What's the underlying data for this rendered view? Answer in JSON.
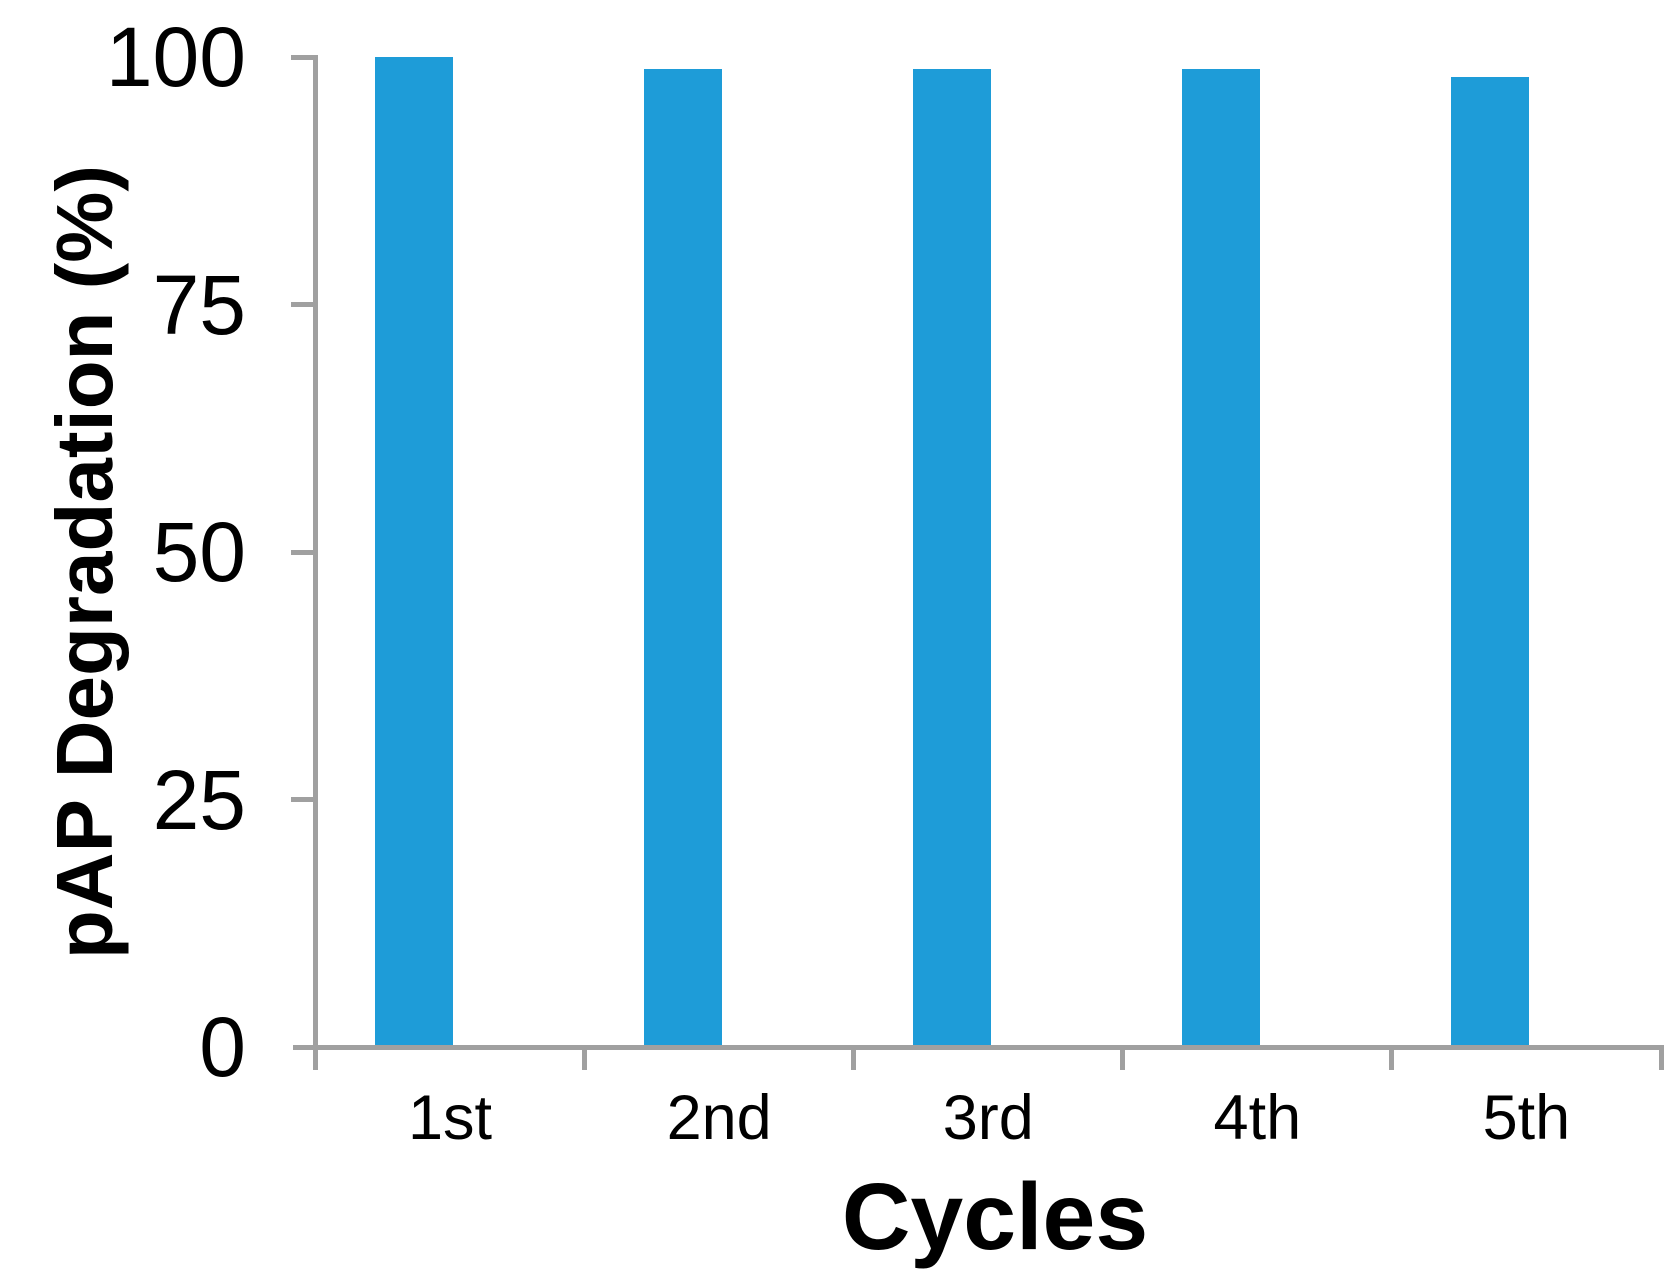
{
  "chart_data": {
    "type": "bar",
    "title": "",
    "categories": [
      "1st",
      "2nd",
      "3rd",
      "4th",
      "5th"
    ],
    "values": [
      100,
      98.8,
      98.8,
      98.8,
      98
    ],
    "xlabel": "Cycles",
    "ylabel": "pAP Degradation (%)",
    "ylim": [
      0,
      100
    ],
    "yticks": [
      0,
      25,
      50,
      75,
      100
    ],
    "grid": "off",
    "legend": "none",
    "bar_color": "#1E9CD8",
    "axis_color": "#A0A0A0",
    "text_color": "#000000"
  }
}
